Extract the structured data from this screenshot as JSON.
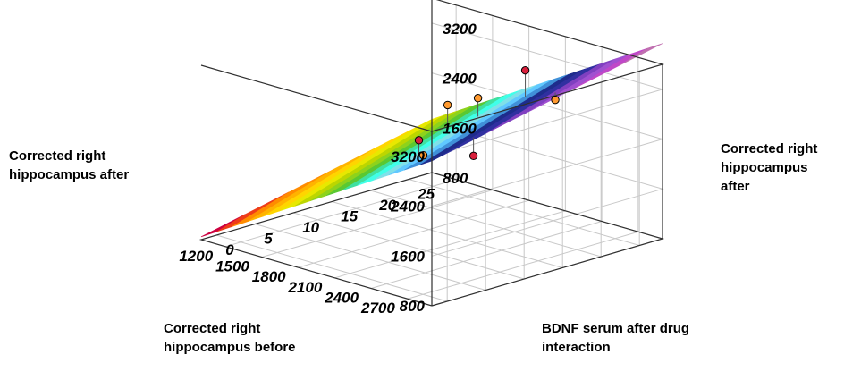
{
  "chart_data": {
    "type": "surface3d",
    "x_label": "Corrected right hippocampus before",
    "y_label": "BDNF serum after drug interaction",
    "z_label_left": "Corrected right hippocampus after",
    "z_label_right": "Corrected right hippocampus after",
    "x_ticks": [
      2700,
      2400,
      2100,
      1800,
      1500,
      1200
    ],
    "y_ticks": [
      0,
      5,
      10,
      15,
      20,
      25
    ],
    "z_ticks": [
      800,
      1600,
      2400,
      3200
    ],
    "x_range": [
      1000,
      2900
    ],
    "y_range": [
      -2,
      28
    ],
    "z_range": [
      800,
      3600
    ],
    "surface": {
      "type": "plane",
      "z_at_x1000_y0": 900,
      "z_at_x2900_y0": 3180,
      "slope_y": 27
    },
    "color_bands": [
      "#cc0040",
      "#ee3c18",
      "#ff8c00",
      "#ffb300",
      "#ffd500",
      "#e8e800",
      "#bcd600",
      "#8ed21c",
      "#5ac832",
      "#40e0a0",
      "#40ffe8",
      "#80e0e8",
      "#60c8ff",
      "#4090d8",
      "#1e2c8c",
      "#3030a0",
      "#8040c0",
      "#a050d0",
      "#c048c8",
      "#c070b0"
    ],
    "points": [
      {
        "x": 2800,
        "y": 5,
        "z": 2900,
        "color": "#d8203c"
      },
      {
        "x": 2650,
        "y": 18,
        "z": 3250,
        "color": "#ff9a30"
      },
      {
        "x": 2450,
        "y": 4,
        "z": 2750,
        "color": "#ff9a30"
      },
      {
        "x": 2350,
        "y": 5,
        "z": 2900,
        "color": "#d8203c"
      },
      {
        "x": 2150,
        "y": 22,
        "z": 3300,
        "color": "#d8203c"
      },
      {
        "x": 1950,
        "y": 19,
        "z": 2850,
        "color": "#ff9a30"
      },
      {
        "x": 1700,
        "y": 19,
        "z": 2600,
        "color": "#ff9a30"
      }
    ]
  }
}
